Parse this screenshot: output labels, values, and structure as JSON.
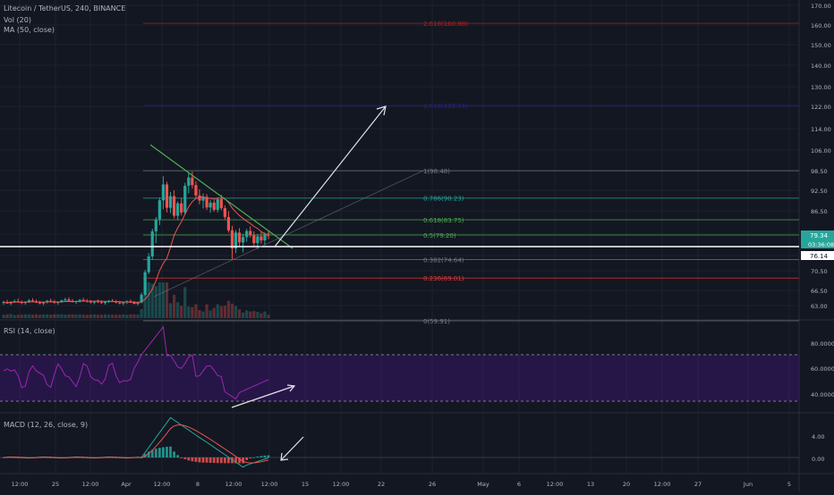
{
  "legend": {
    "symbol": "Litecoin / TetherUS, 240, BINANCE",
    "volume": "Vol (20)",
    "ma": "MA (50, close)",
    "rsi": "RSI (14, close)",
    "macd": "MACD (12, 26, close, 9)"
  },
  "colors": {
    "background": "#131722",
    "grid": "#1e222d",
    "up": "#26a69a",
    "down": "#ef5350",
    "rsi": "#9c27b0",
    "macd": "#26a69a",
    "signal": "#ef5350",
    "trendline": "#4caf50",
    "support": "#ffffff",
    "price_label": "#26a69a"
  },
  "price_axis": {
    "labels": [
      "170.00",
      "160.00",
      "150.00",
      "140.00",
      "130.00",
      "122.00",
      "114.00",
      "106.00",
      "98.50",
      "92.50",
      "86.50",
      "79.34",
      "03:36:08",
      "76.14",
      "70.50",
      "66.50",
      "63.00"
    ],
    "current_price": "79.34",
    "countdown": "03:36:08",
    "support_price": "76.14"
  },
  "rsi_axis": {
    "labels": [
      "80.0000",
      "60.0000",
      "40.0000"
    ]
  },
  "macd_axis": {
    "labels": [
      "4.00",
      "0.00"
    ]
  },
  "time_axis": {
    "labels": [
      "12:00",
      "25",
      "12:00",
      "Apr",
      "12:00",
      "8",
      "12:00",
      "12:00",
      "15",
      "12:00",
      "22",
      "26",
      "May",
      "6",
      "12:00",
      "13",
      "20",
      "12:00",
      "27",
      "Jun",
      "5"
    ]
  },
  "fib_labels": [
    "2.618(160.88)",
    "1.618(122.31)",
    "1(98.48)",
    "0.786(90.23)",
    "0.618(83.75)",
    "0.5(79.20)",
    "0.382(74.64)",
    "0.236(69.01)",
    "0(59.91)"
  ],
  "chart_data": {
    "type": "candlestick",
    "symbol": "Litecoin / TetherUS",
    "interval": "240",
    "exchange": "BINANCE",
    "y_range": [
      58,
      172
    ],
    "price_ticks": [
      170,
      160,
      150,
      140,
      130,
      122,
      114,
      106,
      98.5,
      92.5,
      86.5,
      79.34,
      76.14,
      70.5,
      66.5,
      63
    ],
    "current_price": 79.34,
    "support_level": 76.14,
    "fibonacci": [
      {
        "ratio": 2.618,
        "price": 160.88,
        "color": "#b71c1c"
      },
      {
        "ratio": 1.618,
        "price": 122.31,
        "color": "#311b92"
      },
      {
        "ratio": 1,
        "price": 98.48,
        "color": "#787b86"
      },
      {
        "ratio": 0.786,
        "price": 90.23,
        "color": "#26a69a"
      },
      {
        "ratio": 0.618,
        "price": 83.75,
        "color": "#4caf50"
      },
      {
        "ratio": 0.5,
        "price": 79.2,
        "color": "#4caf50"
      },
      {
        "ratio": 0.382,
        "price": 74.64,
        "color": "#787b86"
      },
      {
        "ratio": 0.236,
        "price": 69.01,
        "color": "#e53935"
      },
      {
        "ratio": 0,
        "price": 59.91,
        "color": "#787b86"
      }
    ],
    "ohlc": [
      [
        63.6,
        64.1,
        63.2,
        63.8
      ],
      [
        63.8,
        64.3,
        63.4,
        63.5
      ],
      [
        63.5,
        64.0,
        63.1,
        63.9
      ],
      [
        63.9,
        64.4,
        63.6,
        64.0
      ],
      [
        64.0,
        64.6,
        63.7,
        63.8
      ],
      [
        63.8,
        64.2,
        63.3,
        63.6
      ],
      [
        63.6,
        64.0,
        63.2,
        63.9
      ],
      [
        63.9,
        64.5,
        63.6,
        64.2
      ],
      [
        64.2,
        64.7,
        63.9,
        64.0
      ],
      [
        64.0,
        64.4,
        63.6,
        63.7
      ],
      [
        63.7,
        64.1,
        63.3,
        63.5
      ],
      [
        63.5,
        63.9,
        63.1,
        63.8
      ],
      [
        63.8,
        64.3,
        63.5,
        64.1
      ],
      [
        64.1,
        64.6,
        63.8,
        63.9
      ],
      [
        63.9,
        64.3,
        63.5,
        63.6
      ],
      [
        63.6,
        64.0,
        63.2,
        63.9
      ],
      [
        63.9,
        64.4,
        63.6,
        64.2
      ],
      [
        64.2,
        64.8,
        63.9,
        64.4
      ],
      [
        64.4,
        64.9,
        64.0,
        64.1
      ],
      [
        64.1,
        64.5,
        63.7,
        63.8
      ],
      [
        63.8,
        64.2,
        63.4,
        64.0
      ],
      [
        64.0,
        64.5,
        63.7,
        64.3
      ],
      [
        64.3,
        64.8,
        64.0,
        64.1
      ],
      [
        64.1,
        64.5,
        63.7,
        63.9
      ],
      [
        63.9,
        64.3,
        63.5,
        63.7
      ],
      [
        63.7,
        64.1,
        63.3,
        64.0
      ],
      [
        64.0,
        64.4,
        63.6,
        63.8
      ],
      [
        63.8,
        64.2,
        63.4,
        63.6
      ],
      [
        63.6,
        64.0,
        63.2,
        63.9
      ],
      [
        63.9,
        64.3,
        63.6,
        64.1
      ],
      [
        64.1,
        64.5,
        63.8,
        63.9
      ],
      [
        63.9,
        64.3,
        63.5,
        63.7
      ],
      [
        63.7,
        64.1,
        63.3,
        63.5
      ],
      [
        63.5,
        63.9,
        63.1,
        63.8
      ],
      [
        63.8,
        64.2,
        63.4,
        64.0
      ],
      [
        64.0,
        64.4,
        63.6,
        63.7
      ],
      [
        63.7,
        64.1,
        63.3,
        63.4
      ],
      [
        63.4,
        63.9,
        63.0,
        63.7
      ],
      [
        63.7,
        66.0,
        63.5,
        65.5
      ],
      [
        65.5,
        70.8,
        65.2,
        70.2
      ],
      [
        70.2,
        76.5,
        69.8,
        75.8
      ],
      [
        75.8,
        81.0,
        74.5,
        80.2
      ],
      [
        80.2,
        84.6,
        78.0,
        83.9
      ],
      [
        83.9,
        90.4,
        82.1,
        89.6
      ],
      [
        89.6,
        96.8,
        87.0,
        94.3
      ],
      [
        94.3,
        95.1,
        86.0,
        87.4
      ],
      [
        87.4,
        92.0,
        85.8,
        90.8
      ],
      [
        90.8,
        92.5,
        84.2,
        85.0
      ],
      [
        85.0,
        89.3,
        83.6,
        88.7
      ],
      [
        88.7,
        90.2,
        85.1,
        86.0
      ],
      [
        86.0,
        94.8,
        85.4,
        93.9
      ],
      [
        93.9,
        97.9,
        91.6,
        96.4
      ],
      [
        96.4,
        98.2,
        93.0,
        94.1
      ],
      [
        94.1,
        95.3,
        90.2,
        91.0
      ],
      [
        91.0,
        92.8,
        88.4,
        89.5
      ],
      [
        89.5,
        91.6,
        87.2,
        90.6
      ],
      [
        90.6,
        91.4,
        86.8,
        87.5
      ],
      [
        87.5,
        89.8,
        85.9,
        88.9
      ],
      [
        88.9,
        89.6,
        86.2,
        86.8
      ],
      [
        86.8,
        90.3,
        86.0,
        89.9
      ],
      [
        89.9,
        91.2,
        86.7,
        87.3
      ],
      [
        87.3,
        88.1,
        83.9,
        84.6
      ],
      [
        84.6,
        86.4,
        79.8,
        80.5
      ],
      [
        80.5,
        81.9,
        74.8,
        77.2
      ],
      [
        77.2,
        80.6,
        76.5,
        79.8
      ],
      [
        79.8,
        81.2,
        77.4,
        78.1
      ],
      [
        78.1,
        79.5,
        76.6,
        78.9
      ],
      [
        78.9,
        80.9,
        78.2,
        80.3
      ],
      [
        80.3,
        81.7,
        78.8,
        79.2
      ],
      [
        79.2,
        80.2,
        77.6,
        78.0
      ],
      [
        78.0,
        79.4,
        77.1,
        79.0
      ],
      [
        79.0,
        80.1,
        77.9,
        78.4
      ],
      [
        78.4,
        79.8,
        77.7,
        79.5
      ],
      [
        79.5,
        80.4,
        78.6,
        79.34
      ]
    ],
    "rsi_levels": [
      70,
      30
    ],
    "rsi_range": [
      20,
      100
    ],
    "macd_range": [
      -2.5,
      8.0
    ]
  }
}
